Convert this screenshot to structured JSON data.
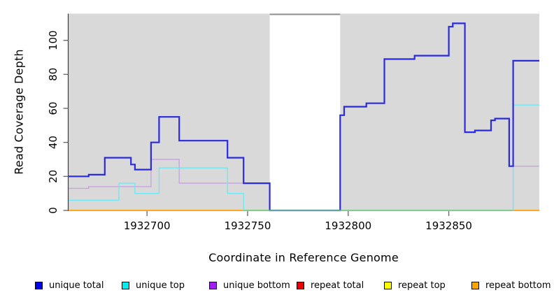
{
  "chart_data": {
    "type": "line",
    "subtype": "step-coverage-plot",
    "title": "",
    "xlabel": "Coordinate in Reference Genome",
    "ylabel": "Read Coverage Depth",
    "xlim": [
      1932661,
      1932895
    ],
    "ylim": [
      0,
      115
    ],
    "x_ticks": [
      "1932700",
      "1932750",
      "1932800",
      "1932850"
    ],
    "x_tick_values": [
      1932700,
      1932750,
      1932800,
      1932850
    ],
    "y_ticks": [
      "0",
      "20",
      "40",
      "60",
      "80",
      "100"
    ],
    "y_tick_values": [
      0,
      20,
      40,
      60,
      80,
      100
    ],
    "grid": "off",
    "panel_fill": "#d9d9d9",
    "uncovered_gap": {
      "x0": 1932761,
      "x1": 1932796,
      "fill": "#ffffff",
      "top_border": "#8c8c8c"
    },
    "series": [
      {
        "name": "repeat total",
        "color": "#ee0000",
        "width": 1.4,
        "steps": [
          [
            1932661,
            0
          ]
        ]
      },
      {
        "name": "repeat top",
        "color": "#ffff00",
        "width": 1.4,
        "steps": [
          [
            1932661,
            0
          ]
        ]
      },
      {
        "name": "repeat bottom",
        "color": "#ffa51e",
        "width": 1.8,
        "steps": [
          [
            1932661,
            0
          ]
        ]
      },
      {
        "name": "unique bottom",
        "color": "#c9a2e2",
        "width": 1.4,
        "steps": [
          [
            1932661,
            13
          ],
          [
            1932671,
            14
          ],
          [
            1932702,
            30
          ],
          [
            1932716,
            16
          ],
          [
            1932761,
            0
          ],
          [
            1932882,
            26
          ]
        ]
      },
      {
        "name": "unique top",
        "color": "#6fe8f3",
        "width": 1.4,
        "steps": [
          [
            1932661,
            6
          ],
          [
            1932686,
            16
          ],
          [
            1932694,
            10
          ],
          [
            1932706,
            25
          ],
          [
            1932740,
            10
          ],
          [
            1932748,
            0
          ],
          [
            1932882,
            62
          ]
        ]
      },
      {
        "name": "unique total",
        "color": "#2a2ade",
        "width": 2.2,
        "steps": [
          [
            1932661,
            20
          ],
          [
            1932671,
            21
          ],
          [
            1932679,
            31
          ],
          [
            1932692,
            27
          ],
          [
            1932694,
            24
          ],
          [
            1932702,
            40
          ],
          [
            1932706,
            55
          ],
          [
            1932716,
            41
          ],
          [
            1932740,
            31
          ],
          [
            1932748,
            16
          ],
          [
            1932761,
            0
          ],
          [
            1932796,
            56
          ],
          [
            1932798,
            61
          ],
          [
            1932809,
            63
          ],
          [
            1932818,
            89
          ],
          [
            1932833,
            91
          ],
          [
            1932850,
            108
          ],
          [
            1932852,
            110
          ],
          [
            1932858,
            46
          ],
          [
            1932863,
            47
          ],
          [
            1932871,
            53
          ],
          [
            1932873,
            54
          ],
          [
            1932880,
            26
          ],
          [
            1932882,
            88
          ]
        ]
      }
    ],
    "baseline_blend_overlay": {
      "name": "cyan-yellow-blend",
      "color": "#74ce85",
      "x0": 1932748,
      "x1": 1932882,
      "value": 0,
      "width": 1.4
    },
    "legend_position": "bottom",
    "legend": [
      {
        "label": "unique total",
        "color": "#0000ee"
      },
      {
        "label": "unique top",
        "color": "#00eeee"
      },
      {
        "label": "unique bottom",
        "color": "#a020f0"
      },
      {
        "label": "repeat total",
        "color": "#ee0000"
      },
      {
        "label": "repeat top",
        "color": "#ffff00"
      },
      {
        "label": "repeat bottom",
        "color": "#ffa500"
      }
    ]
  }
}
